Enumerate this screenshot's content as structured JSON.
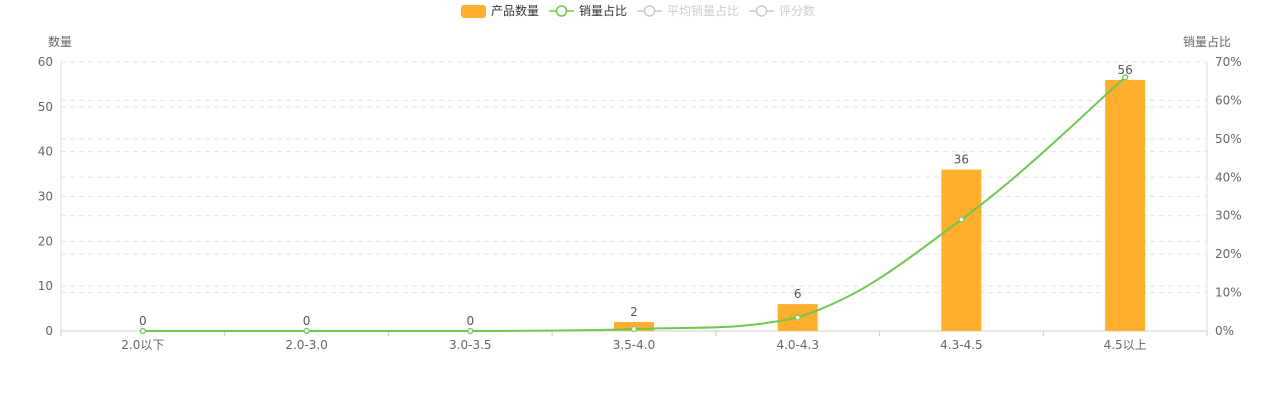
{
  "chart_data": {
    "type": "bar",
    "categories": [
      "2.0以下",
      "2.0-3.0",
      "3.0-3.5",
      "3.5-4.0",
      "4.0-4.3",
      "4.3-4.5",
      "4.5以上"
    ],
    "series": [
      {
        "name": "产品数量",
        "type": "bar",
        "axis": "left",
        "values": [
          0,
          0,
          0,
          2,
          6,
          36,
          56
        ],
        "color": "#FFAF2D"
      },
      {
        "name": "销量占比",
        "type": "line",
        "axis": "right",
        "values": [
          0,
          0,
          0,
          0.5,
          3.5,
          29,
          66
        ],
        "color": "#6CC84E"
      }
    ],
    "legend": {
      "position": "top-center",
      "items": [
        {
          "name": "产品数量",
          "kind": "bar",
          "active": true,
          "color": "#FFAF2D"
        },
        {
          "name": "销量占比",
          "kind": "line",
          "active": true,
          "color": "#6CC84E"
        },
        {
          "name": "平均销量占比",
          "kind": "line",
          "active": false,
          "color": "#CCCCCC"
        },
        {
          "name": "评分数",
          "kind": "line",
          "active": false,
          "color": "#CCCCCC"
        }
      ]
    },
    "y_left": {
      "label": "数量",
      "ylim": [
        0,
        60
      ],
      "ticks": [
        0,
        10,
        20,
        30,
        40,
        50,
        60
      ]
    },
    "y_right": {
      "label": "销量占比",
      "ylim": [
        0,
        70
      ],
      "ticks": [
        "0%",
        "10%",
        "20%",
        "30%",
        "40%",
        "50%",
        "60%",
        "70%"
      ]
    },
    "grid": true,
    "bar_data_labels": true
  }
}
